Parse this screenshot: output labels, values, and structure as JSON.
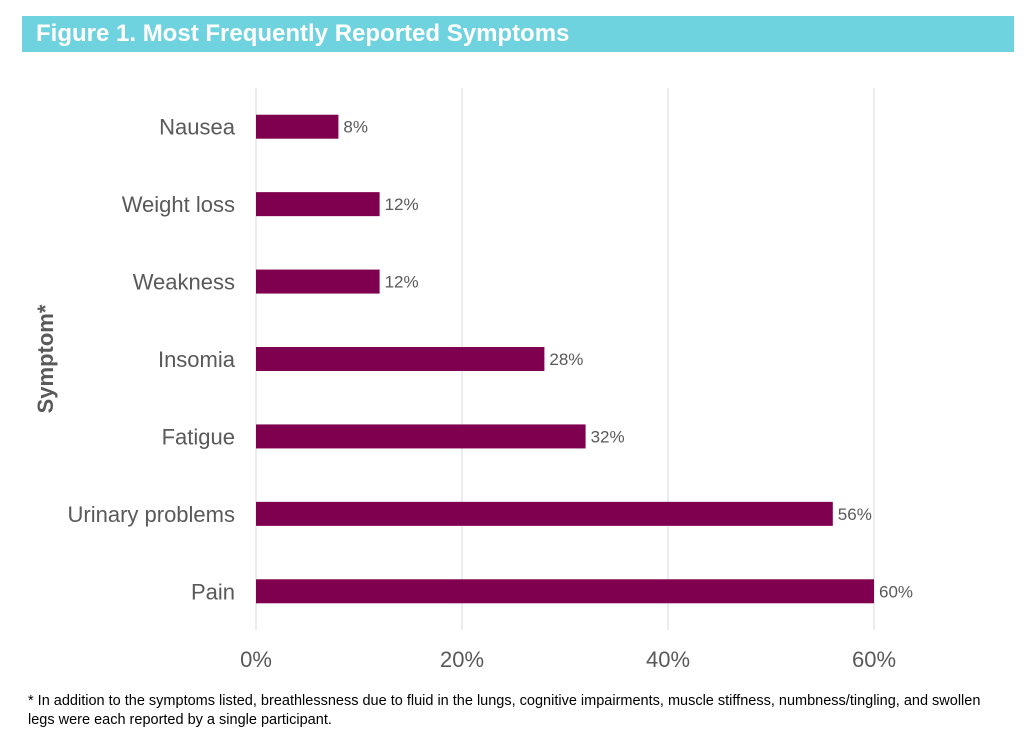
{
  "title": "Figure 1. Most Frequently Reported Symptoms",
  "footnote": "* In addition to the symptoms listed, breathlessness due to fluid in the lungs, cognitive impairments, muscle stiffness, numbness/tingling, and swollen legs were each reported by a single participant.",
  "colors": {
    "title_bg": "#6fd3df",
    "bar": "#800050",
    "grid": "#d9d9d9",
    "label_text": "#595959"
  },
  "chart_data": {
    "type": "bar",
    "orientation": "horizontal",
    "ylabel": "Symptom*",
    "xlabel": "",
    "xlim": [
      0,
      70
    ],
    "x_ticks": [
      0,
      20,
      40,
      60
    ],
    "x_tick_labels": [
      "0%",
      "20%",
      "40%",
      "60%"
    ],
    "grid": true,
    "categories": [
      "Nausea",
      "Weight loss",
      "Weakness",
      "Insomia",
      "Fatigue",
      "Urinary problems",
      "Pain"
    ],
    "values": [
      8,
      12,
      12,
      28,
      32,
      56,
      60
    ],
    "data_labels": [
      "8%",
      "12%",
      "12%",
      "28%",
      "32%",
      "56%",
      "60%"
    ]
  }
}
